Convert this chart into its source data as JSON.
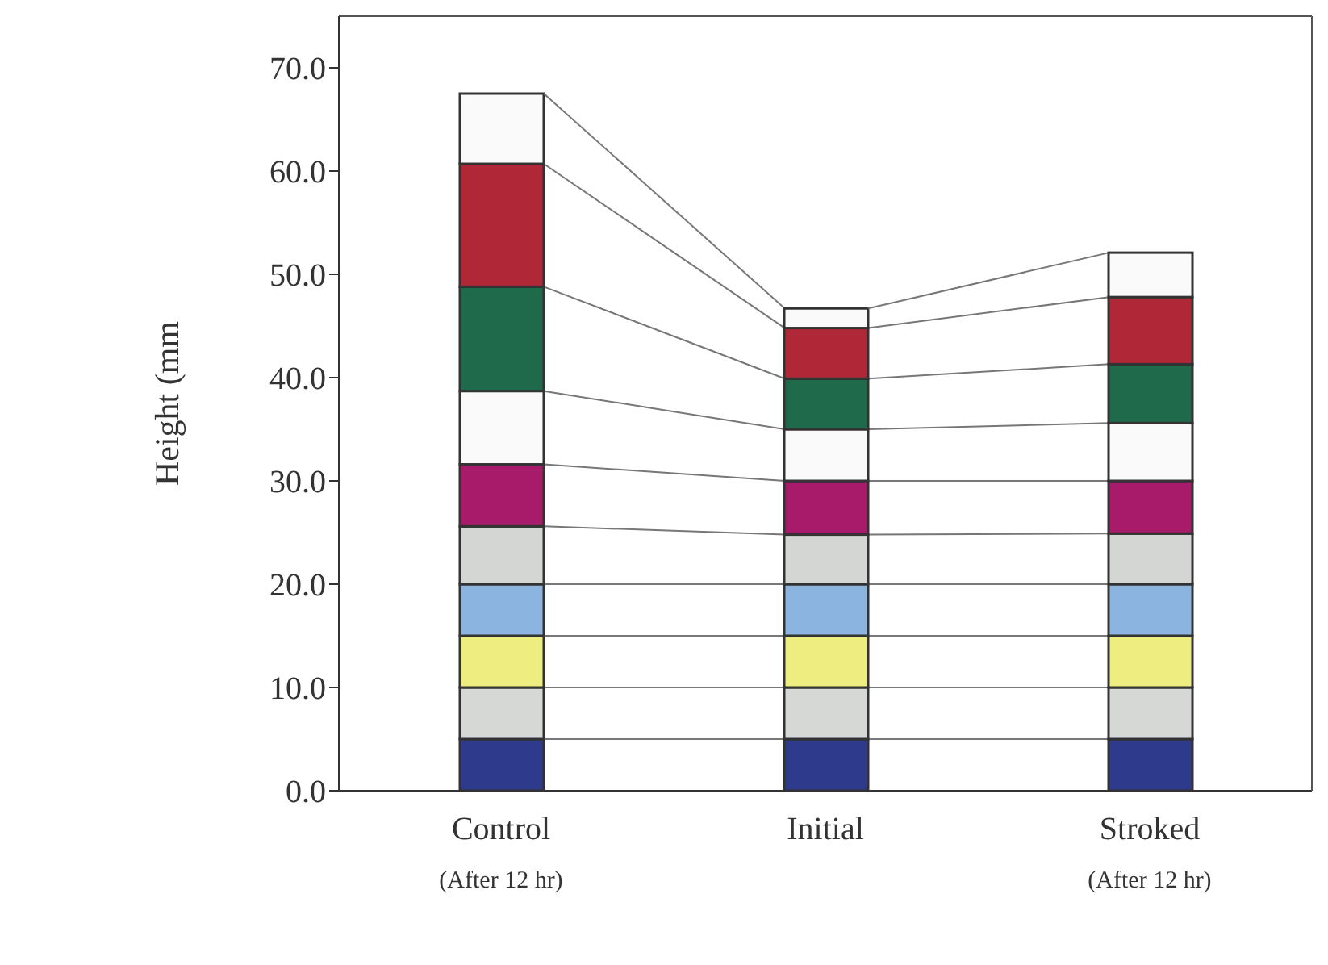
{
  "chart_data": {
    "type": "bar",
    "stacked": true,
    "ylabel": "Height (mm",
    "categories": [
      "Control\n(After 12 hr)",
      "Initial",
      "Stroked\n(After 12 hr)"
    ],
    "ylim": [
      0,
      75
    ],
    "yticks": [
      {
        "value": 0,
        "label": "0.0"
      },
      {
        "value": 10,
        "label": "10.0"
      },
      {
        "value": 20,
        "label": "20.0"
      },
      {
        "value": 30,
        "label": "30.0"
      },
      {
        "value": 40,
        "label": "40.0"
      },
      {
        "value": 50,
        "label": "50.0"
      },
      {
        "value": 60,
        "label": "60.0"
      },
      {
        "value": 70,
        "label": "70.0"
      }
    ],
    "grid": false,
    "legend": false,
    "series": [
      {
        "color": "#2e3a8c",
        "values": [
          5,
          5,
          5
        ]
      },
      {
        "color": "#d6d8d6",
        "values": [
          5,
          5,
          5
        ]
      },
      {
        "color": "#eeee80",
        "values": [
          5,
          5,
          5
        ]
      },
      {
        "color": "#8cb4e0",
        "values": [
          5,
          5,
          5
        ]
      },
      {
        "color": "#d4d6d4",
        "values": [
          5.6,
          4.8,
          4.9
        ]
      },
      {
        "color": "#a81a6a",
        "values": [
          6,
          5.2,
          5.1
        ]
      },
      {
        "color": "#fafafa",
        "values": [
          7.1,
          5,
          5.6
        ]
      },
      {
        "color": "#1e6a4a",
        "values": [
          10.1,
          4.9,
          5.7
        ]
      },
      {
        "color": "#b02838",
        "values": [
          11.9,
          4.9,
          6.5
        ]
      },
      {
        "color": "#fafafa",
        "values": [
          6.8,
          1.9,
          4.3
        ]
      }
    ]
  }
}
